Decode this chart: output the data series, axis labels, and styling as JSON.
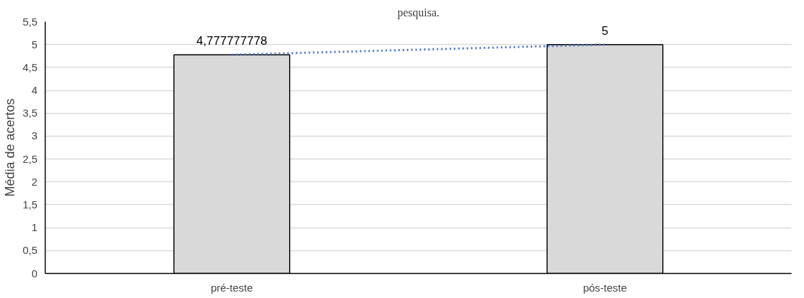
{
  "chart_data": {
    "type": "bar",
    "title": "pesquisa.",
    "ylabel": "Média de acertos",
    "categories": [
      "pré-teste",
      "pós-teste"
    ],
    "series": [
      {
        "color": "#d9d9d9",
        "values": [
          4.777777778,
          5
        ],
        "value_labels": [
          "4,777777778",
          "5"
        ]
      },
      {
        "type": "line",
        "color": "#4472c4",
        "values": [
          4.777777778,
          5
        ],
        "line_style": "dotted",
        "marker": "none"
      }
    ],
    "ylim": [
      0,
      5.5
    ],
    "yticks": [
      0,
      {
        "value": 0.5,
        "label": "0,5"
      },
      1,
      {
        "value": 1.5,
        "label": "1,5"
      },
      2,
      {
        "value": 2.5,
        "label": "2,5"
      },
      3,
      {
        "value": 3.5,
        "label": "3,5"
      },
      4,
      {
        "value": 4.5,
        "label": "4,5"
      },
      5,
      {
        "value": 5.5,
        "label": "5,5"
      }
    ],
    "grid": "y"
  }
}
